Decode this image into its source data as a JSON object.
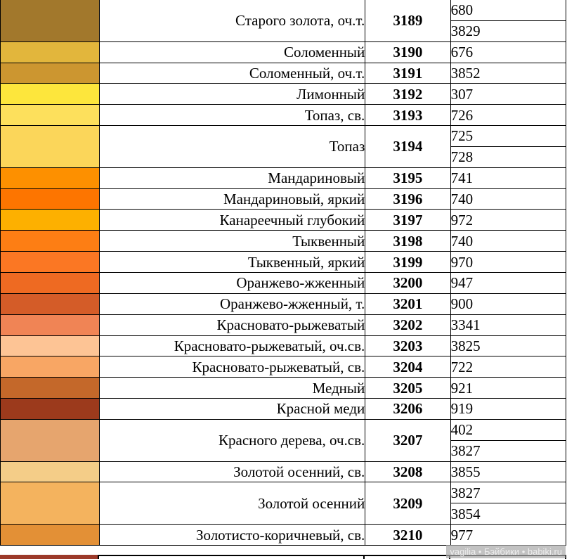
{
  "table": {
    "rows": [
      {
        "name": "Старого золота, оч.т.",
        "code": "3189",
        "dmc": [
          "680",
          "3829"
        ],
        "color": "#a2782c"
      },
      {
        "name": "Соломенный",
        "code": "3190",
        "dmc": [
          "676"
        ],
        "color": "#e2b63c"
      },
      {
        "name": "Соломенный, оч.т.",
        "code": "3191",
        "dmc": [
          "3852"
        ],
        "color": "#cc9630"
      },
      {
        "name": "Лимонный",
        "code": "3192",
        "dmc": [
          "307"
        ],
        "color": "#fde63c"
      },
      {
        "name": "Топаз, св.",
        "code": "3193",
        "dmc": [
          "726"
        ],
        "color": "#fde05c"
      },
      {
        "name": "Топаз",
        "code": "3194",
        "dmc": [
          "725",
          "728"
        ],
        "color": "#fbd65a"
      },
      {
        "name": "Мандариновый",
        "code": "3195",
        "dmc": [
          "741"
        ],
        "color": "#fd9000"
      },
      {
        "name": "Мандариновый, яркий",
        "code": "3196",
        "dmc": [
          "740"
        ],
        "color": "#fd7500"
      },
      {
        "name": "Канареечный глубокий",
        "code": "3197",
        "dmc": [
          "972"
        ],
        "color": "#fdb000"
      },
      {
        "name": "Тыквенный",
        "code": "3198",
        "dmc": [
          "740"
        ],
        "color": "#fd7e14"
      },
      {
        "name": "Тыквенный, яркий",
        "code": "3199",
        "dmc": [
          "970"
        ],
        "color": "#fb7723"
      },
      {
        "name": "Оранжево-жженный",
        "code": "3200",
        "dmc": [
          "947"
        ],
        "color": "#ee6a22"
      },
      {
        "name": "Оранжево-жженный, т.",
        "code": "3201",
        "dmc": [
          "900"
        ],
        "color": "#d45c28"
      },
      {
        "name": "Красновато-рыжеватый",
        "code": "3202",
        "dmc": [
          "3341"
        ],
        "color": "#f08455"
      },
      {
        "name": "Красновато-рыжеватый, оч.св.",
        "code": "3203",
        "dmc": [
          "3825"
        ],
        "color": "#fdc495"
      },
      {
        "name": "Красновато-рыжеватый, св.",
        "code": "3204",
        "dmc": [
          "722"
        ],
        "color": "#f8a664"
      },
      {
        "name": "Медный",
        "code": "3205",
        "dmc": [
          "921"
        ],
        "color": "#c4682a"
      },
      {
        "name": "Красной меди",
        "code": "3206",
        "dmc": [
          "919"
        ],
        "color": "#9c3a1c"
      },
      {
        "name": "Красного дерева, оч.св.",
        "code": "3207",
        "dmc": [
          "402",
          "3827"
        ],
        "color": "#e6a56e"
      },
      {
        "name": "Золотой осенний, св.",
        "code": "3208",
        "dmc": [
          "3855"
        ],
        "color": "#f4cd88"
      },
      {
        "name": "Золотой осенний",
        "code": "3209",
        "dmc": [
          "3827",
          "3854"
        ],
        "color": "#f4b35e"
      },
      {
        "name": "Золотисто-коричневый, св.",
        "code": "3210",
        "dmc": [
          "977"
        ],
        "color": "#e39036"
      }
    ],
    "next_row_color": "#9c3a2a"
  },
  "watermark": "vagilia • Бэйбики • babiki.ru"
}
